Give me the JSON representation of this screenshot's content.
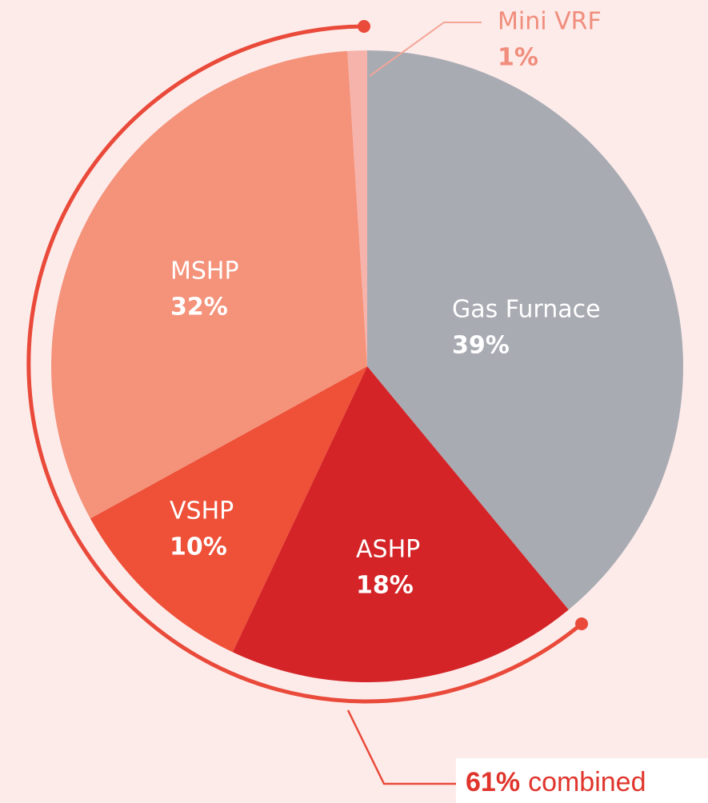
{
  "chart_data": {
    "type": "pie",
    "categories": [
      "Gas Furnace",
      "ASHP",
      "VSHP",
      "MSHP",
      "Mini VRF"
    ],
    "values": [
      39,
      18,
      10,
      32,
      1
    ],
    "value_labels": [
      "39%",
      "18%",
      "10%",
      "32%",
      "1%"
    ],
    "colors": [
      "#a9abb3",
      "#d42427",
      "#ee5038",
      "#f4927a",
      "#f6b3ab"
    ],
    "annotation": {
      "label": "61%",
      "text": "combined"
    }
  }
}
